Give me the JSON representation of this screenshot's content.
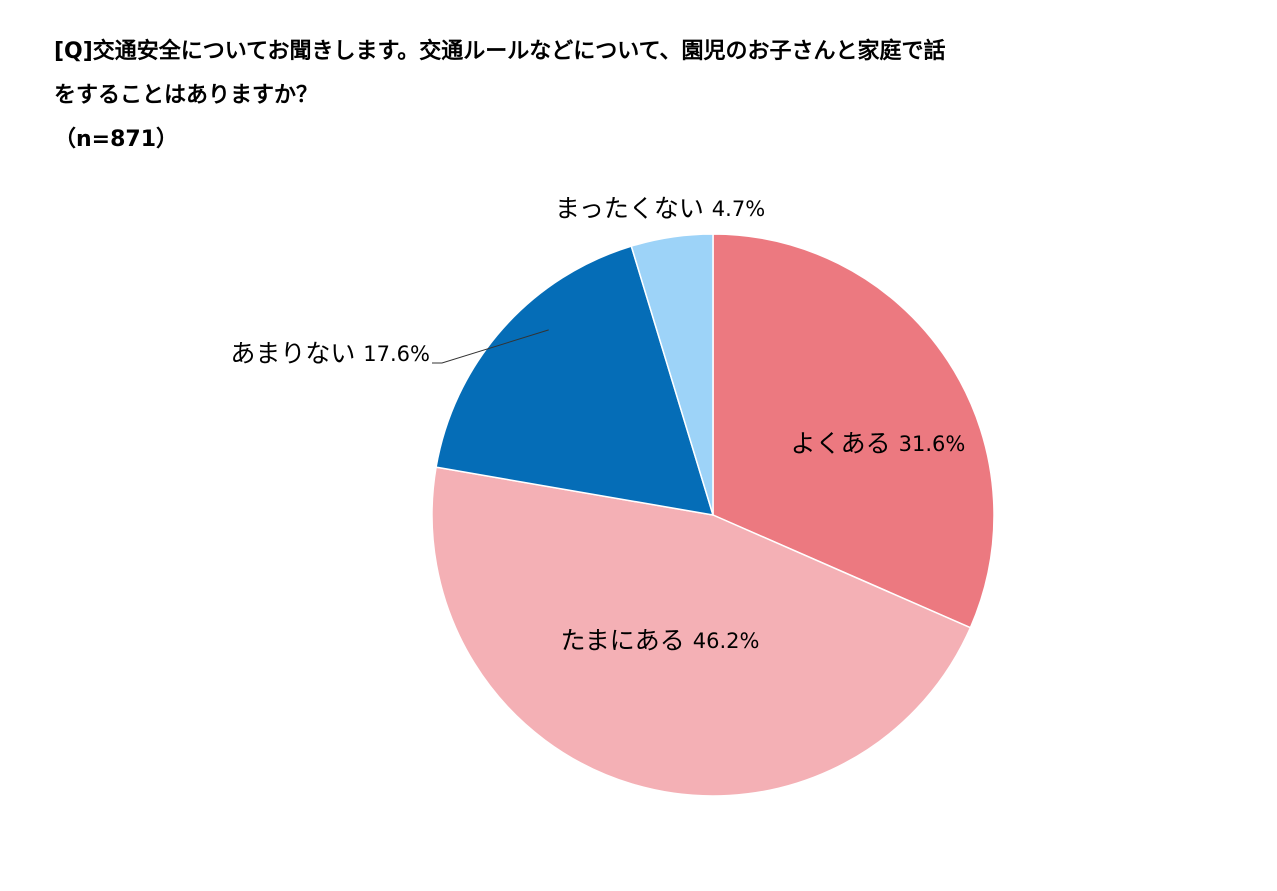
{
  "question": {
    "line1": "[Q]交通安全についてお聞きします。交通ルールなどについて、園児のお子さんと家庭で話",
    "line2": "をすることはありますか？",
    "sample": "（n=871）"
  },
  "chart_data": {
    "type": "pie",
    "start_angle_deg": 0,
    "direction": "clockwise",
    "slices": [
      {
        "label": "よくある",
        "value": 31.6,
        "value_label": "31.6%",
        "color": "#ec7980"
      },
      {
        "label": "たまにある",
        "value": 46.2,
        "value_label": "46.2%",
        "color": "#f4b0b5"
      },
      {
        "label": "あまりない",
        "value": 17.6,
        "value_label": "17.6%",
        "color": "#056db7"
      },
      {
        "label": "まったくない",
        "value": 4.7,
        "value_label": "4.7%",
        "color": "#9dd3f8"
      }
    ],
    "legend": "none"
  }
}
